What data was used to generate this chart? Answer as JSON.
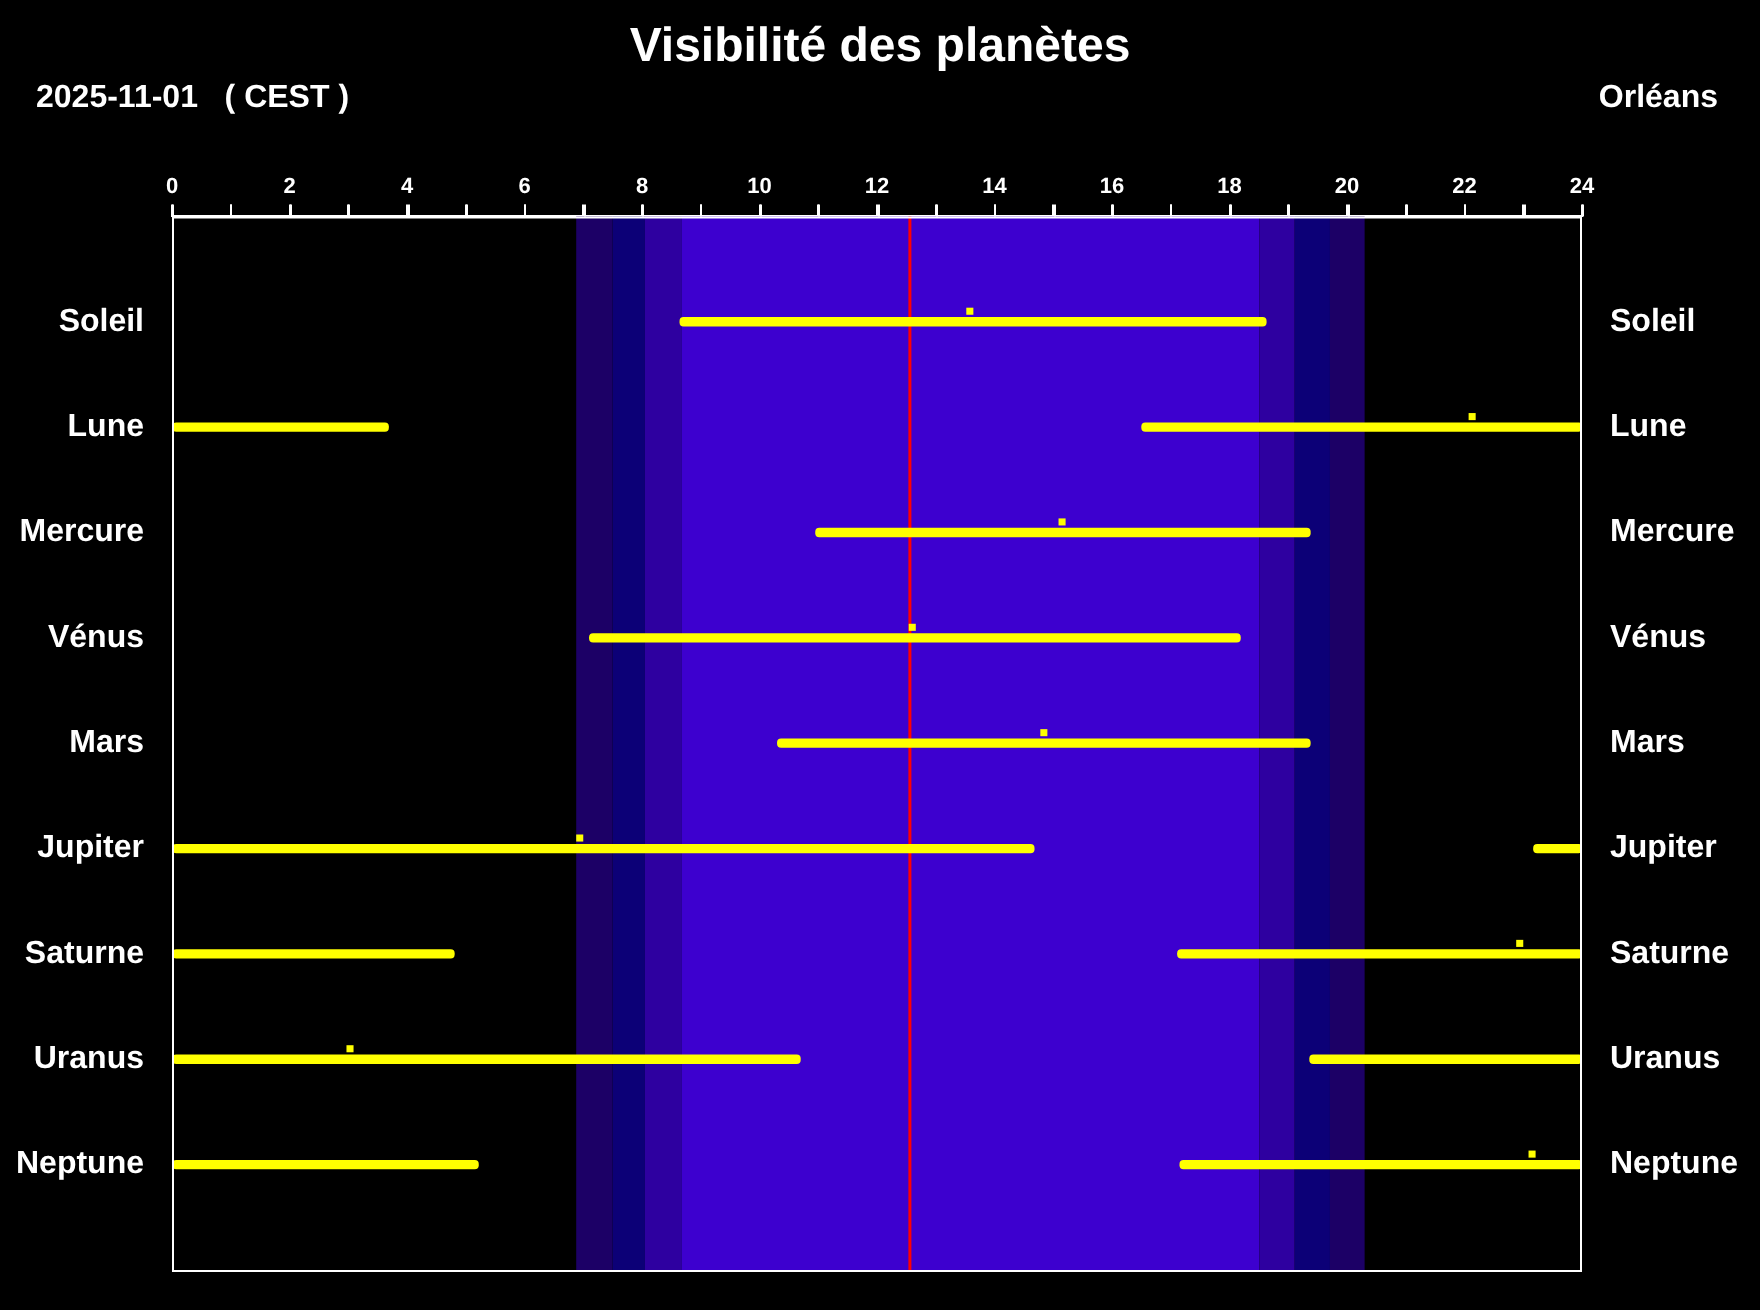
{
  "chart_data": {
    "type": "bar",
    "orientation": "horizontal",
    "title": "Visibilité des planètes",
    "annotations": [
      "2025-11-01   ( CEST )",
      "Orléans"
    ],
    "categories": [
      "Soleil",
      "Lune",
      "Mercure",
      "Vénus",
      "Mars",
      "Jupiter",
      "Saturne",
      "Uranus",
      "Neptune"
    ],
    "xlim": [
      0,
      24
    ],
    "xticks": [
      0,
      {
        "value": 1,
        "label": null
      },
      2,
      {
        "value": 3,
        "label": null
      },
      4,
      {
        "value": 5,
        "label": null
      },
      6,
      {
        "value": 7,
        "label": null
      },
      8,
      {
        "value": 9,
        "label": null
      },
      10,
      {
        "value": 11,
        "label": null
      },
      12,
      {
        "value": 13,
        "label": null
      },
      14,
      {
        "value": 15,
        "label": null
      },
      16,
      {
        "value": 17,
        "label": null
      },
      18,
      {
        "value": 19,
        "label": null
      },
      20,
      {
        "value": 21,
        "label": null
      },
      22,
      {
        "value": 23,
        "label": null
      },
      24
    ],
    "series": [
      {
        "color": "#ffff00",
        "base": [
          8.65,
          0,
          10.96,
          7.11,
          10.31,
          0,
          0,
          0,
          0
        ],
        "values": [
          9.97,
          3.68,
          8.41,
          11.07,
          9.06,
          14.67,
          4.8,
          10.69,
          5.21
        ]
      },
      {
        "color": "#ffff00",
        "base": [
          null,
          16.51,
          null,
          null,
          null,
          23.18,
          17.12,
          19.37,
          17.16
        ],
        "values": [
          null,
          7.49,
          null,
          null,
          null,
          0.82,
          6.88,
          4.63,
          6.84
        ]
      },
      {
        "type": "scatter",
        "color": "#ffff00",
        "marker": "square",
        "values": [
          13.58,
          22.13,
          15.15,
          12.6,
          14.84,
          6.94,
          22.94,
          3.03,
          23.15
        ]
      }
    ],
    "bands": [
      {
        "axis": "x",
        "from": 6.88,
        "to": 7.5,
        "color": "#1c0066"
      },
      {
        "axis": "x",
        "from": 7.5,
        "to": 8.05,
        "color": "#0c0077"
      },
      {
        "axis": "x",
        "from": 8.05,
        "to": 8.68,
        "color": "#2e00a0"
      },
      {
        "axis": "x",
        "from": 8.68,
        "to": 18.51,
        "color": "#3d00cf"
      },
      {
        "axis": "x",
        "from": 18.51,
        "to": 19.11,
        "color": "#2e00a0"
      },
      {
        "axis": "x",
        "from": 19.11,
        "to": 19.71,
        "color": "#0c0077"
      },
      {
        "axis": "x",
        "from": 19.71,
        "to": 20.3,
        "color": "#1c0066"
      }
    ],
    "ref_lines": [
      {
        "axis": "x",
        "value": 12.56,
        "color": "#ff0000"
      }
    ]
  }
}
